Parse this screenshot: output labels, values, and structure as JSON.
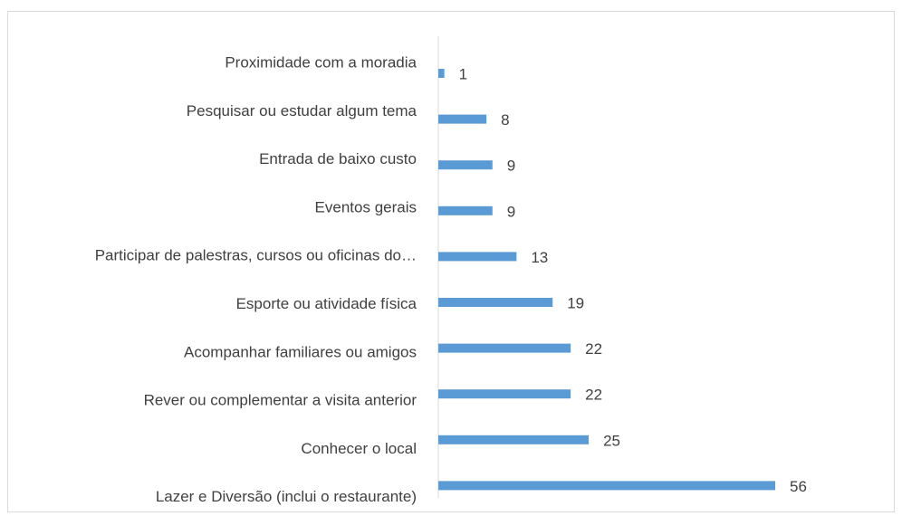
{
  "chart_data": {
    "type": "barh",
    "categories": [
      "Proximidade com a moradia",
      "Pesquisar ou estudar algum tema",
      "Entrada de baixo custo",
      "Eventos gerais",
      "Participar de palestras, cursos ou oficinas do…",
      "Esporte ou atividade física",
      "Acompanhar familiares ou amigos",
      "Rever ou complementar a visita anterior",
      "Conhecer o local",
      "Lazer e Diversão (inclui o restaurante)"
    ],
    "values": [
      1,
      8,
      9,
      9,
      13,
      19,
      22,
      22,
      25,
      56
    ],
    "color": "#5b9bd5"
  }
}
